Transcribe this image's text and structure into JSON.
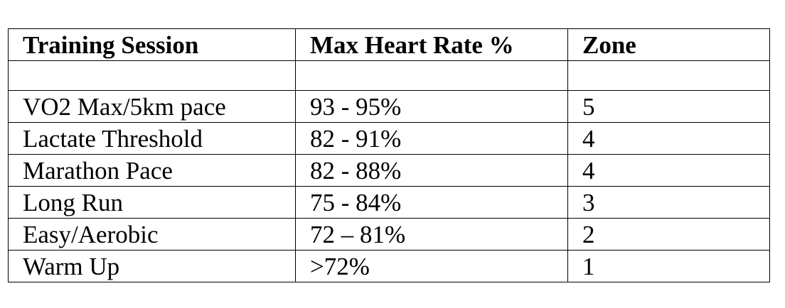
{
  "table": {
    "headers": [
      "Training Session",
      "Max Heart Rate %",
      "Zone"
    ],
    "rows": [
      [
        "VO2 Max/5km pace",
        "93 - 95%",
        "5"
      ],
      [
        "Lactate Threshold",
        "82 - 91%",
        "4"
      ],
      [
        "Marathon Pace",
        "82 - 88%",
        "4"
      ],
      [
        "Long Run",
        "75 - 84%",
        "3"
      ],
      [
        "Easy/Aerobic",
        "72 – 81%",
        "2"
      ],
      [
        "Warm Up",
        ">72%",
        "1"
      ]
    ]
  }
}
